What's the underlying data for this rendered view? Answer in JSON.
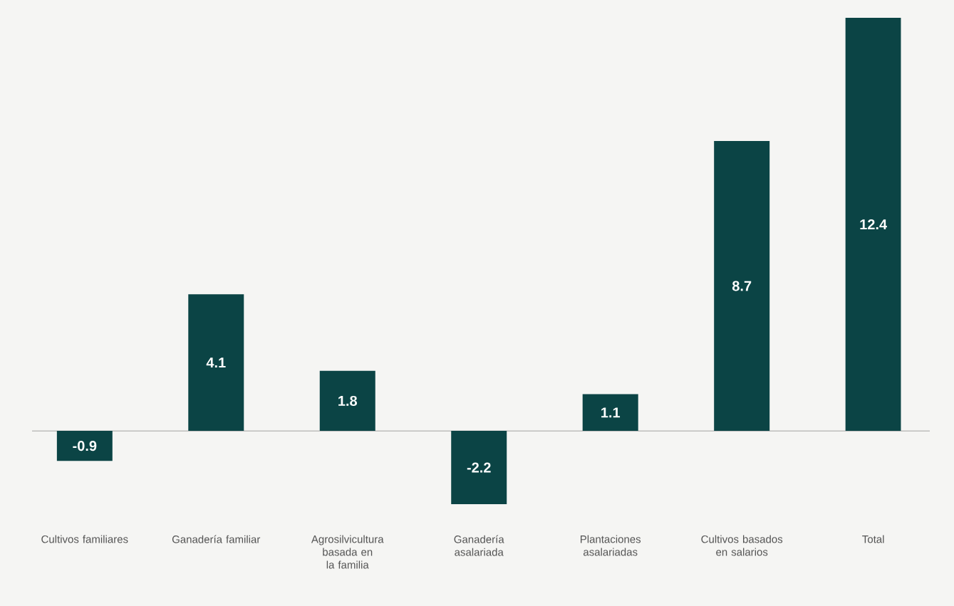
{
  "chart_data": {
    "type": "bar",
    "categories": [
      "Cultivos familiares",
      "Ganadería familiar",
      "Agrosilvicultura basada en la familia",
      "Ganadería asalariada",
      "Plantaciones asalariadas",
      "Cultivos basados en salarios",
      "Total"
    ],
    "values": [
      -0.9,
      4.1,
      1.8,
      -2.2,
      1.1,
      8.7,
      12.4
    ],
    "color": "#0b4445",
    "data_labels": true
  }
}
